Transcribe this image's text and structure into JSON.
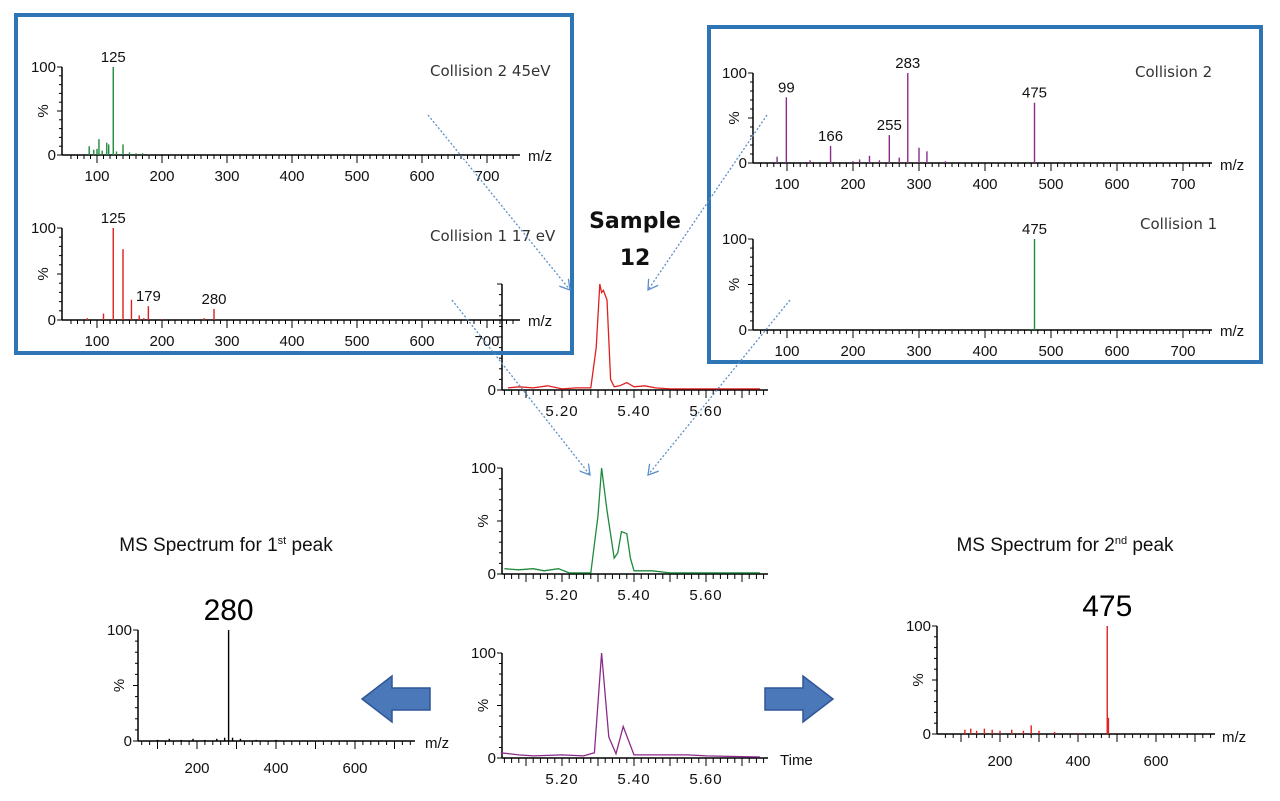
{
  "sample_title": {
    "line1": "Sample",
    "line2": "12"
  },
  "bottom_titles": {
    "left": {
      "pre": "MS Spectrum for 1",
      "sup": "st",
      "post": " peak"
    },
    "right": {
      "pre": "MS Spectrum for 2",
      "sup": "nd",
      "post": " peak"
    }
  },
  "colors": {
    "box": "#2e75b6",
    "arrow": "#4472c4",
    "dotted_arrow": "#5b8fc7",
    "green": "#1e8a3c",
    "red": "#e02020",
    "purple": "#8b2a8b",
    "black": "#000000"
  },
  "chart_data": [
    {
      "id": "c2_45ev",
      "type": "bar",
      "group": "left-box",
      "title": "Collision 2 45eV",
      "xlabel": "m/z",
      "ylabel": "%",
      "xlim": [
        46,
        750
      ],
      "ylim": [
        0,
        100
      ],
      "xticks": [
        100,
        200,
        300,
        400,
        500,
        600,
        700
      ],
      "yticks": [
        0,
        100
      ],
      "color": "#1e8a3c",
      "peaks": [
        [
          88,
          10
        ],
        [
          95,
          6
        ],
        [
          100,
          7
        ],
        [
          103,
          18
        ],
        [
          108,
          5
        ],
        [
          115,
          14
        ],
        [
          118,
          12
        ],
        [
          125,
          100
        ],
        [
          130,
          4
        ],
        [
          140,
          12
        ],
        [
          150,
          3
        ],
        [
          160,
          2
        ],
        [
          170,
          2
        ],
        [
          180,
          1
        ]
      ],
      "labels": [
        [
          125,
          "125"
        ]
      ]
    },
    {
      "id": "c1_17ev",
      "type": "bar",
      "group": "left-box",
      "title": "Collision 1 17 eV",
      "xlabel": "m/z",
      "ylabel": "%",
      "xlim": [
        46,
        750
      ],
      "ylim": [
        0,
        100
      ],
      "xticks": [
        100,
        200,
        300,
        400,
        500,
        600,
        700
      ],
      "yticks": [
        0,
        100
      ],
      "color": "#e02020",
      "peaks": [
        [
          85,
          2
        ],
        [
          110,
          7
        ],
        [
          125,
          100
        ],
        [
          140,
          77
        ],
        [
          153,
          22
        ],
        [
          165,
          5
        ],
        [
          172,
          2
        ],
        [
          179,
          15
        ],
        [
          200,
          1
        ],
        [
          265,
          2
        ],
        [
          280,
          12
        ]
      ],
      "labels": [
        [
          125,
          "125"
        ],
        [
          179,
          "179"
        ],
        [
          280,
          "280"
        ]
      ]
    },
    {
      "id": "c2",
      "type": "bar",
      "group": "right-box",
      "title": "Collision 2",
      "xlabel": "m/z",
      "ylabel": "%",
      "xlim": [
        46,
        750
      ],
      "ylim": [
        0,
        100
      ],
      "xticks": [
        100,
        200,
        300,
        400,
        500,
        600,
        700
      ],
      "yticks": [
        0,
        100
      ],
      "color": "#8b2a8b",
      "peaks": [
        [
          85,
          7
        ],
        [
          99,
          73
        ],
        [
          135,
          3
        ],
        [
          166,
          19
        ],
        [
          200,
          2
        ],
        [
          210,
          4
        ],
        [
          225,
          8
        ],
        [
          240,
          3
        ],
        [
          255,
          31
        ],
        [
          270,
          6
        ],
        [
          283,
          100
        ],
        [
          300,
          17
        ],
        [
          312,
          13
        ],
        [
          340,
          2
        ],
        [
          475,
          67
        ]
      ],
      "labels": [
        [
          99,
          "99"
        ],
        [
          166,
          "166"
        ],
        [
          255,
          "255"
        ],
        [
          283,
          "283"
        ],
        [
          475,
          "475"
        ]
      ]
    },
    {
      "id": "c1",
      "type": "bar",
      "group": "right-box",
      "title": "Collision 1",
      "xlabel": "m/z",
      "ylabel": "%",
      "xlim": [
        46,
        750
      ],
      "ylim": [
        0,
        100
      ],
      "xticks": [
        100,
        200,
        300,
        400,
        500,
        600,
        700
      ],
      "yticks": [
        0,
        100
      ],
      "color": "#1e8a3c",
      "peaks": [
        [
          470,
          1
        ],
        [
          475,
          100
        ]
      ],
      "labels": [
        [
          475,
          "475"
        ]
      ]
    },
    {
      "id": "chrom_red",
      "type": "line",
      "xlim": [
        5.03,
        5.77
      ],
      "ylim": [
        0,
        100
      ],
      "xticks": [
        5.2,
        5.4,
        5.6
      ],
      "xtick_labels": [
        "5.20",
        "5.40",
        "5.60"
      ],
      "yticks": [
        0
      ],
      "color": "#e02020",
      "points": [
        [
          5.05,
          2
        ],
        [
          5.08,
          3
        ],
        [
          5.12,
          2
        ],
        [
          5.16,
          4
        ],
        [
          5.2,
          1
        ],
        [
          5.24,
          2
        ],
        [
          5.28,
          2
        ],
        [
          5.295,
          40
        ],
        [
          5.305,
          100
        ],
        [
          5.31,
          92
        ],
        [
          5.315,
          94
        ],
        [
          5.325,
          85
        ],
        [
          5.335,
          10
        ],
        [
          5.345,
          3
        ],
        [
          5.36,
          4
        ],
        [
          5.38,
          7
        ],
        [
          5.4,
          3
        ],
        [
          5.43,
          4
        ],
        [
          5.46,
          2
        ],
        [
          5.5,
          1
        ],
        [
          5.6,
          1
        ],
        [
          5.75,
          1
        ]
      ]
    },
    {
      "id": "chrom_green",
      "type": "line",
      "xlim": [
        5.03,
        5.77
      ],
      "ylim": [
        0,
        100
      ],
      "xticks": [
        5.2,
        5.4,
        5.6
      ],
      "xtick_labels": [
        "5.20",
        "5.40",
        "5.60"
      ],
      "yticks": [
        0,
        100
      ],
      "ylabel": "%",
      "color": "#1e8a3c",
      "points": [
        [
          5.04,
          5
        ],
        [
          5.08,
          4
        ],
        [
          5.12,
          5
        ],
        [
          5.15,
          3
        ],
        [
          5.19,
          5
        ],
        [
          5.22,
          1
        ],
        [
          5.28,
          1
        ],
        [
          5.3,
          55
        ],
        [
          5.31,
          100
        ],
        [
          5.325,
          60
        ],
        [
          5.345,
          15
        ],
        [
          5.355,
          20
        ],
        [
          5.365,
          40
        ],
        [
          5.38,
          38
        ],
        [
          5.39,
          15
        ],
        [
          5.4,
          3
        ],
        [
          5.45,
          3
        ],
        [
          5.5,
          1
        ],
        [
          5.6,
          1
        ],
        [
          5.75,
          1
        ]
      ]
    },
    {
      "id": "chrom_purple",
      "type": "line",
      "xlim": [
        5.03,
        5.77
      ],
      "ylim": [
        0,
        100
      ],
      "xticks": [
        5.2,
        5.4,
        5.6
      ],
      "xtick_labels": [
        "5.20",
        "5.40",
        "5.60"
      ],
      "yticks": [
        0,
        100
      ],
      "ylabel": "%",
      "xlabel": "Time",
      "color": "#8b2a8b",
      "points": [
        [
          5.03,
          5
        ],
        [
          5.08,
          3
        ],
        [
          5.12,
          2
        ],
        [
          5.2,
          3
        ],
        [
          5.26,
          2
        ],
        [
          5.29,
          5
        ],
        [
          5.31,
          100
        ],
        [
          5.33,
          20
        ],
        [
          5.35,
          4
        ],
        [
          5.37,
          30
        ],
        [
          5.4,
          3
        ],
        [
          5.5,
          3
        ],
        [
          5.55,
          3
        ],
        [
          5.6,
          2
        ],
        [
          5.75,
          1
        ]
      ]
    },
    {
      "id": "ms_peak1",
      "type": "bar",
      "title": "MS Spectrum for 1st peak",
      "xlabel": "m/z",
      "ylabel": "%",
      "xlim": [
        50,
        750
      ],
      "ylim": [
        0,
        100
      ],
      "xticks": [
        200,
        400,
        600
      ],
      "yticks": [
        0,
        100
      ],
      "color": "#000000",
      "peaks": [
        [
          100,
          1
        ],
        [
          130,
          2
        ],
        [
          160,
          1
        ],
        [
          190,
          2
        ],
        [
          220,
          1
        ],
        [
          250,
          2
        ],
        [
          270,
          3
        ],
        [
          280,
          100
        ],
        [
          290,
          3
        ],
        [
          310,
          2
        ],
        [
          350,
          1
        ],
        [
          400,
          1
        ]
      ],
      "labels": [
        [
          280,
          "280"
        ]
      ]
    },
    {
      "id": "ms_peak2",
      "type": "bar",
      "title": "MS Spectrum for 2nd peak",
      "xlabel": "m/z",
      "ylabel": "%",
      "xlim": [
        50,
        750
      ],
      "ylim": [
        0,
        100
      ],
      "xticks": [
        200,
        400,
        600
      ],
      "yticks": [
        0,
        100
      ],
      "color": "#e02020",
      "peaks": [
        [
          110,
          4
        ],
        [
          125,
          5
        ],
        [
          140,
          3
        ],
        [
          160,
          5
        ],
        [
          180,
          4
        ],
        [
          200,
          3
        ],
        [
          230,
          4
        ],
        [
          260,
          3
        ],
        [
          280,
          8
        ],
        [
          300,
          3
        ],
        [
          340,
          2
        ],
        [
          400,
          1
        ],
        [
          475,
          100
        ],
        [
          478,
          15
        ]
      ],
      "labels": [
        [
          475,
          "475"
        ]
      ]
    }
  ]
}
